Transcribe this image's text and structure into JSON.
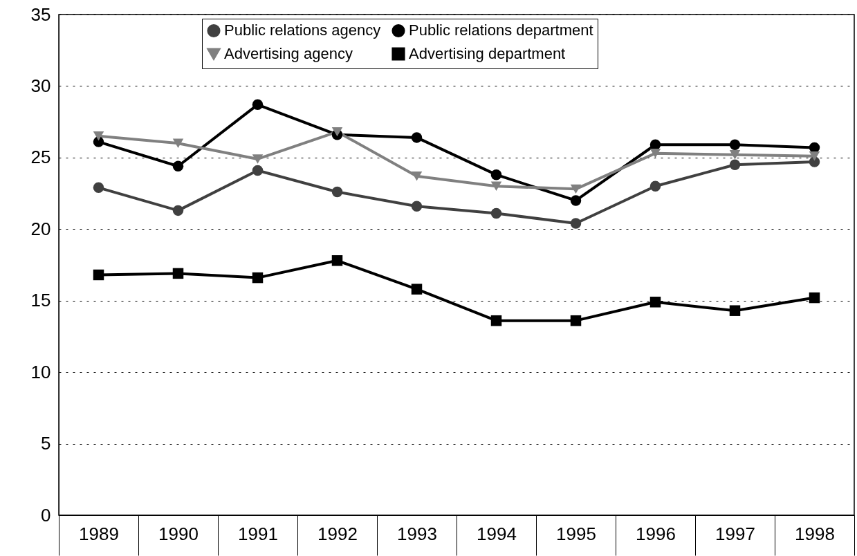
{
  "chart_data": {
    "type": "line",
    "categories": [
      "1989",
      "1990",
      "1991",
      "1992",
      "1993",
      "1994",
      "1995",
      "1996",
      "1997",
      "1998"
    ],
    "series": [
      {
        "name": "Public relations agency",
        "color": "#404040",
        "marker": "circle",
        "values": [
          22.9,
          21.3,
          24.1,
          22.6,
          21.6,
          21.1,
          20.4,
          23.0,
          24.5,
          24.7
        ]
      },
      {
        "name": "Public relations department",
        "color": "#000000",
        "marker": "circle",
        "values": [
          26.1,
          24.4,
          28.7,
          26.6,
          26.4,
          23.8,
          22.0,
          25.9,
          25.9,
          25.7
        ]
      },
      {
        "name": "Advertising agency",
        "color": "#808080",
        "marker": "triangle",
        "values": [
          26.5,
          26.0,
          24.9,
          26.8,
          23.7,
          23.0,
          22.8,
          25.3,
          25.2,
          25.1
        ]
      },
      {
        "name": "Advertising department",
        "color": "#000000",
        "marker": "square",
        "values": [
          16.8,
          16.9,
          16.6,
          17.8,
          15.8,
          13.6,
          13.6,
          14.9,
          14.3,
          15.2
        ]
      }
    ],
    "ylim": [
      0,
      35
    ],
    "yticks": [
      0,
      5,
      10,
      15,
      20,
      25,
      30,
      35
    ],
    "grid": "y",
    "legend": "top",
    "line_style": "solid"
  }
}
